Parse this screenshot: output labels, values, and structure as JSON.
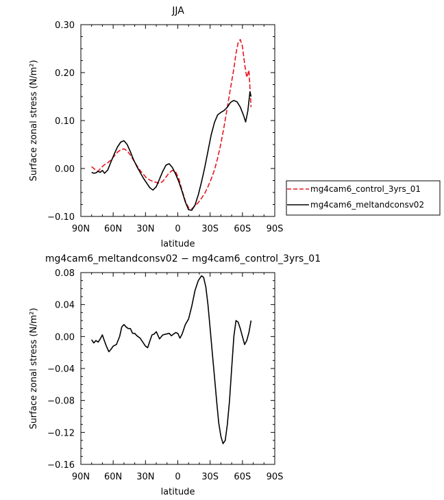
{
  "chart_data": [
    {
      "type": "line",
      "title": "JJA",
      "xlabel": "latitude",
      "ylabel": "Surface zonal stress (N/m²)",
      "xlim": [
        90,
        -90
      ],
      "ylim": [
        -0.1,
        0.3
      ],
      "xticks": [
        {
          "value": 90,
          "label": "90N"
        },
        {
          "value": 60,
          "label": "60N"
        },
        {
          "value": 30,
          "label": "30N"
        },
        {
          "value": 0,
          "label": "0"
        },
        {
          "value": -30,
          "label": "30S"
        },
        {
          "value": -60,
          "label": "60S"
        },
        {
          "value": -90,
          "label": "90S"
        }
      ],
      "yticks": [
        {
          "value": -0.1,
          "label": "−0.10"
        },
        {
          "value": 0.0,
          "label": "0.00"
        },
        {
          "value": 0.1,
          "label": "0.10"
        },
        {
          "value": 0.2,
          "label": "0.20"
        },
        {
          "value": 0.3,
          "label": "0.30"
        }
      ],
      "legend_position": "right",
      "series": [
        {
          "name": "mg4cam6_control_3yrs_01",
          "color": "#e8141e",
          "dash": true,
          "x": [
            80,
            77,
            74,
            71,
            68,
            65,
            62,
            59,
            56,
            53,
            50,
            47,
            44,
            41,
            38,
            35,
            32,
            29,
            26,
            23,
            20,
            17,
            14,
            11,
            8,
            5,
            2,
            -1,
            -4,
            -7,
            -10,
            -13,
            -16,
            -19,
            -22,
            -25,
            -28,
            -31,
            -34,
            -37,
            -40,
            -43,
            -46,
            -49,
            -52,
            -54,
            -56,
            -58,
            -60,
            -62,
            -64,
            -66,
            -68
          ],
          "y": [
            0.004,
            -0.002,
            -0.006,
            0.002,
            0.008,
            0.012,
            0.018,
            0.026,
            0.034,
            0.039,
            0.041,
            0.037,
            0.028,
            0.017,
            0.006,
            -0.004,
            -0.012,
            -0.02,
            -0.024,
            -0.027,
            -0.029,
            -0.031,
            -0.027,
            -0.018,
            -0.009,
            -0.004,
            -0.007,
            -0.022,
            -0.046,
            -0.068,
            -0.082,
            -0.084,
            -0.078,
            -0.071,
            -0.062,
            -0.052,
            -0.038,
            -0.022,
            -0.003,
            0.022,
            0.052,
            0.088,
            0.128,
            0.168,
            0.208,
            0.24,
            0.262,
            0.269,
            0.255,
            0.218,
            0.19,
            0.205,
            0.128
          ]
        },
        {
          "name": "mg4cam6_meltandconsv02",
          "color": "#000000",
          "dash": false,
          "x": [
            80,
            78,
            76,
            74,
            72,
            70,
            68,
            65,
            62,
            59,
            56,
            53,
            50,
            47,
            44,
            41,
            38,
            35,
            32,
            29,
            26,
            23,
            20,
            17,
            14,
            11,
            8,
            5,
            2,
            -1,
            -4,
            -7,
            -10,
            -13,
            -16,
            -19,
            -22,
            -25,
            -28,
            -31,
            -34,
            -37,
            -40,
            -43,
            -46,
            -49,
            -52,
            -55,
            -58,
            -61,
            -63,
            -65,
            -67,
            -68
          ],
          "y": [
            -0.008,
            -0.01,
            -0.009,
            -0.006,
            -0.008,
            -0.004,
            -0.01,
            -0.003,
            0.014,
            0.03,
            0.045,
            0.055,
            0.058,
            0.05,
            0.035,
            0.018,
            0.004,
            -0.008,
            -0.02,
            -0.03,
            -0.04,
            -0.045,
            -0.038,
            -0.022,
            -0.006,
            0.007,
            0.01,
            0.002,
            -0.012,
            -0.028,
            -0.048,
            -0.07,
            -0.086,
            -0.087,
            -0.076,
            -0.055,
            -0.028,
            0.002,
            0.036,
            0.07,
            0.096,
            0.112,
            0.117,
            0.121,
            0.128,
            0.138,
            0.142,
            0.139,
            0.128,
            0.111,
            0.097,
            0.12,
            0.16,
            0.15
          ]
        }
      ]
    },
    {
      "type": "line",
      "title": "mg4cam6_meltandconsv02 − mg4cam6_control_3yrs_01",
      "xlabel": "latitude",
      "ylabel": "Surface zonal stress (N/m²)",
      "xlim": [
        90,
        -90
      ],
      "ylim": [
        -0.16,
        0.08
      ],
      "xticks": [
        {
          "value": 90,
          "label": "90N"
        },
        {
          "value": 60,
          "label": "60N"
        },
        {
          "value": 30,
          "label": "30N"
        },
        {
          "value": 0,
          "label": "0"
        },
        {
          "value": -30,
          "label": "30S"
        },
        {
          "value": -60,
          "label": "60S"
        },
        {
          "value": -90,
          "label": "90S"
        }
      ],
      "yticks": [
        {
          "value": -0.16,
          "label": "−0.16"
        },
        {
          "value": -0.12,
          "label": "−0.12"
        },
        {
          "value": -0.08,
          "label": "−0.08"
        },
        {
          "value": -0.04,
          "label": "−0.04"
        },
        {
          "value": 0.0,
          "label": "0.00"
        },
        {
          "value": 0.04,
          "label": "0.04"
        },
        {
          "value": 0.08,
          "label": "0.08"
        }
      ],
      "series": [
        {
          "color": "#000000",
          "dash": false,
          "x": [
            80,
            78,
            76,
            74,
            72,
            70,
            68,
            66,
            64,
            62,
            60,
            57,
            54,
            52,
            50,
            48,
            46,
            44,
            42,
            40,
            38,
            35,
            32,
            30,
            28,
            26,
            24,
            22,
            20,
            17,
            14,
            11,
            8,
            6,
            4,
            2,
            0,
            -2,
            -4,
            -7,
            -10,
            -13,
            -16,
            -19,
            -22,
            -24,
            -26,
            -28,
            -30,
            -32,
            -34,
            -36,
            -38,
            -40,
            -42,
            -44,
            -46,
            -48,
            -50,
            -52,
            -54,
            -56,
            -58,
            -60,
            -62,
            -64,
            -66,
            -68
          ],
          "y": [
            -0.004,
            -0.008,
            -0.005,
            -0.007,
            -0.003,
            0.002,
            -0.006,
            -0.013,
            -0.019,
            -0.016,
            -0.012,
            -0.01,
            0.0,
            0.012,
            0.015,
            0.012,
            0.01,
            0.01,
            0.004,
            0.004,
            0.001,
            -0.002,
            -0.008,
            -0.012,
            -0.014,
            -0.006,
            0.002,
            0.003,
            0.006,
            -0.003,
            0.002,
            0.003,
            0.004,
            0.001,
            0.003,
            0.005,
            0.004,
            -0.002,
            0.003,
            0.015,
            0.022,
            0.038,
            0.058,
            0.07,
            0.076,
            0.074,
            0.062,
            0.04,
            0.01,
            -0.02,
            -0.05,
            -0.08,
            -0.108,
            -0.125,
            -0.134,
            -0.13,
            -0.11,
            -0.08,
            -0.04,
            0.0,
            0.02,
            0.018,
            0.01,
            0.0,
            -0.01,
            -0.005,
            0.005,
            0.02
          ]
        }
      ]
    }
  ]
}
